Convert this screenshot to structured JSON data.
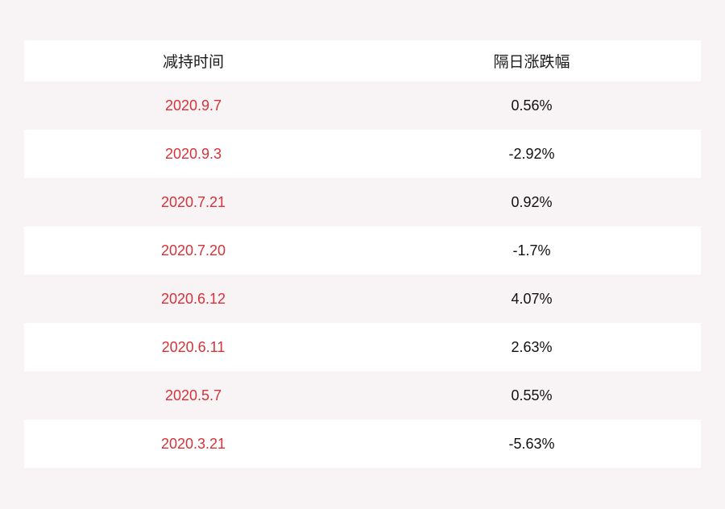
{
  "table": {
    "headers": [
      "减持时间",
      "隔日涨跌幅"
    ],
    "rows": [
      {
        "date": "2020.9.7",
        "change": "0.56%"
      },
      {
        "date": "2020.9.3",
        "change": "-2.92%"
      },
      {
        "date": "2020.7.21",
        "change": "0.92%"
      },
      {
        "date": "2020.7.20",
        "change": "-1.7%"
      },
      {
        "date": "2020.6.12",
        "change": "4.07%"
      },
      {
        "date": "2020.6.11",
        "change": "2.63%"
      },
      {
        "date": "2020.5.7",
        "change": "0.55%"
      },
      {
        "date": "2020.3.21",
        "change": "-5.63%"
      }
    ]
  },
  "colors": {
    "background": "#f8f4f5",
    "row_alt": "#ffffff",
    "date_text": "#d6323a",
    "value_text": "#111111"
  }
}
